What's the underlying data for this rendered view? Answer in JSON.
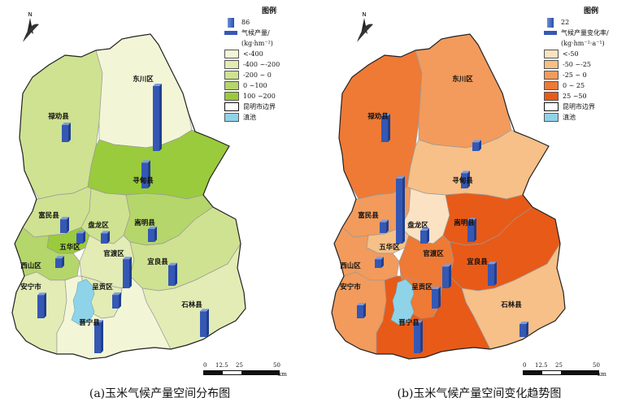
{
  "panel_a": {
    "legend": {
      "title": "图例",
      "bar_value": "86",
      "bar_label": "气候产量/",
      "bar_unit": "(kg·hm⁻²)",
      "classes": [
        {
          "label": "<-400",
          "color": "#f3f6d6"
        },
        {
          "label": "-400 ~-200",
          "color": "#e2ecb4"
        },
        {
          "label": "-200 ~ 0",
          "color": "#cfe291"
        },
        {
          "label": "0 ~100",
          "color": "#b5d66a"
        },
        {
          "label": "100 ~200",
          "color": "#9acb3c"
        }
      ],
      "boundary_label": "昆明市边界",
      "lake_label": "滇池",
      "lake_color": "#8fd3e8"
    },
    "districts": [
      {
        "name": "禄劝县",
        "value": 50
      },
      {
        "name": "东川区",
        "value": 190
      },
      {
        "name": "寻甸县",
        "value": 75
      },
      {
        "name": "富民县",
        "value": 40
      },
      {
        "name": "盘龙区",
        "value": 30
      },
      {
        "name": "嵩明县",
        "value": 38
      },
      {
        "name": "五华区",
        "value": 30
      },
      {
        "name": "西山区",
        "value": 28
      },
      {
        "name": "官渡区",
        "value": 85
      },
      {
        "name": "宜良县",
        "value": 60
      },
      {
        "name": "安宁市",
        "value": 68
      },
      {
        "name": "呈贡区",
        "value": 40
      },
      {
        "name": "石林县",
        "value": 75
      },
      {
        "name": "晋宁县",
        "value": 90
      }
    ],
    "caption": "(a)玉米气候产量空间分布图",
    "scale": {
      "ticks": [
        "0",
        "12.5",
        "25",
        "50"
      ],
      "unit": "km"
    }
  },
  "panel_b": {
    "legend": {
      "title": "图例",
      "bar_value": "22",
      "bar_label": "气候产量变化率/",
      "bar_unit": "(kg·hm⁻²·a⁻¹)",
      "classes": [
        {
          "label": "<-50",
          "color": "#fbe2c2"
        },
        {
          "label": "-50 ~-25",
          "color": "#f6c088"
        },
        {
          "label": "-25 ~ 0",
          "color": "#f29b5c"
        },
        {
          "label": "0 ~ 25",
          "color": "#ee7a35"
        },
        {
          "label": "25 ~50",
          "color": "#e85a18"
        }
      ],
      "boundary_label": "昆明市边界",
      "lake_label": "滇池",
      "lake_color": "#8fd3e8"
    },
    "districts": [
      {
        "name": "禄劝县",
        "value": 12
      },
      {
        "name": "东川区",
        "value": 4
      },
      {
        "name": "寻甸县",
        "value": 7
      },
      {
        "name": "富民县",
        "value": 5
      },
      {
        "name": "盘龙区",
        "value": 6
      },
      {
        "name": "嵩明县",
        "value": 10
      },
      {
        "name": "五华区",
        "value": 30
      },
      {
        "name": "西山区",
        "value": 4
      },
      {
        "name": "官渡区",
        "value": 10
      },
      {
        "name": "宜良县",
        "value": 10
      },
      {
        "name": "安宁市",
        "value": 6
      },
      {
        "name": "呈贡区",
        "value": 9
      },
      {
        "name": "石林县",
        "value": 6
      },
      {
        "name": "晋宁县",
        "value": 14
      }
    ],
    "caption": "(b)玉米气候产量空间变化趋势图",
    "scale": {
      "ticks": [
        "0",
        "12.5",
        "25",
        "50"
      ],
      "unit": "km"
    }
  },
  "north_label": "N"
}
